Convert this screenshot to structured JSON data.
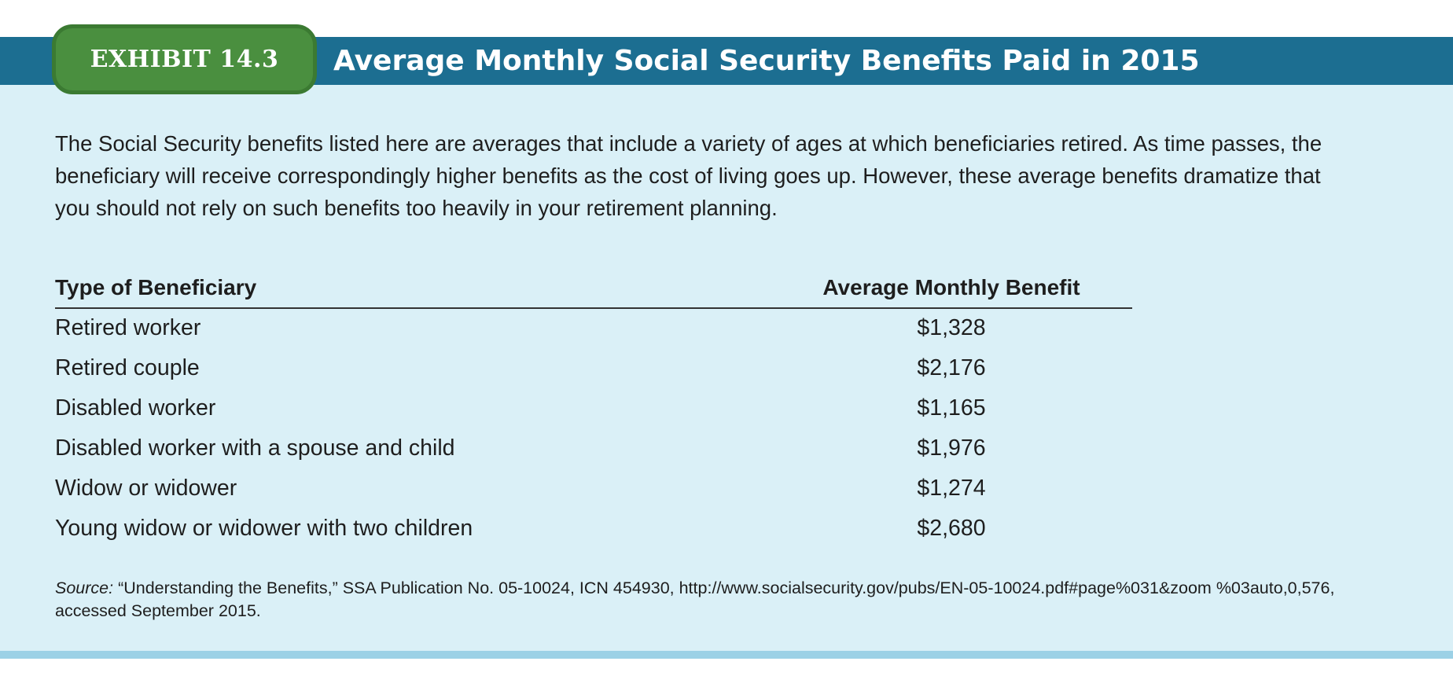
{
  "exhibit": {
    "label": "EXHIBIT 14.3",
    "title": "Average Monthly Social Security Benefits Paid in 2015"
  },
  "intro": "The Social Security benefits listed here are averages that include a variety of ages at which beneficiaries retired. As time passes, the beneficiary will receive correspondingly higher benefits as the cost of living goes up. However, these average benefits dramatize that you should not rely on such benefits too heavily in your retirement planning.",
  "table": {
    "headers": [
      "Type of Beneficiary",
      "Average Monthly Benefit"
    ],
    "rows": [
      {
        "type": "Retired worker",
        "amount": "$1,328"
      },
      {
        "type": "Retired couple",
        "amount": "$2,176"
      },
      {
        "type": "Disabled worker",
        "amount": "$1,165"
      },
      {
        "type": "Disabled worker with a spouse and child",
        "amount": "$1,976"
      },
      {
        "type": "Widow or widower",
        "amount": "$1,274"
      },
      {
        "type": "Young widow or widower with two children",
        "amount": "$2,680"
      }
    ]
  },
  "source": {
    "label": "Source:",
    "text": " “Understanding the Benefits,” SSA Publication No. 05-10024, ICN 454930, http://www.socialsecurity.gov/pubs/EN-05-10024.pdf#page%031&zoom %03auto,0,576, accessed September 2015."
  },
  "colors": {
    "title_bar": "#1c6e91",
    "badge": "#4a8f3f",
    "panel": "#daf0f7",
    "bottom_rule": "#9cd1e6"
  }
}
